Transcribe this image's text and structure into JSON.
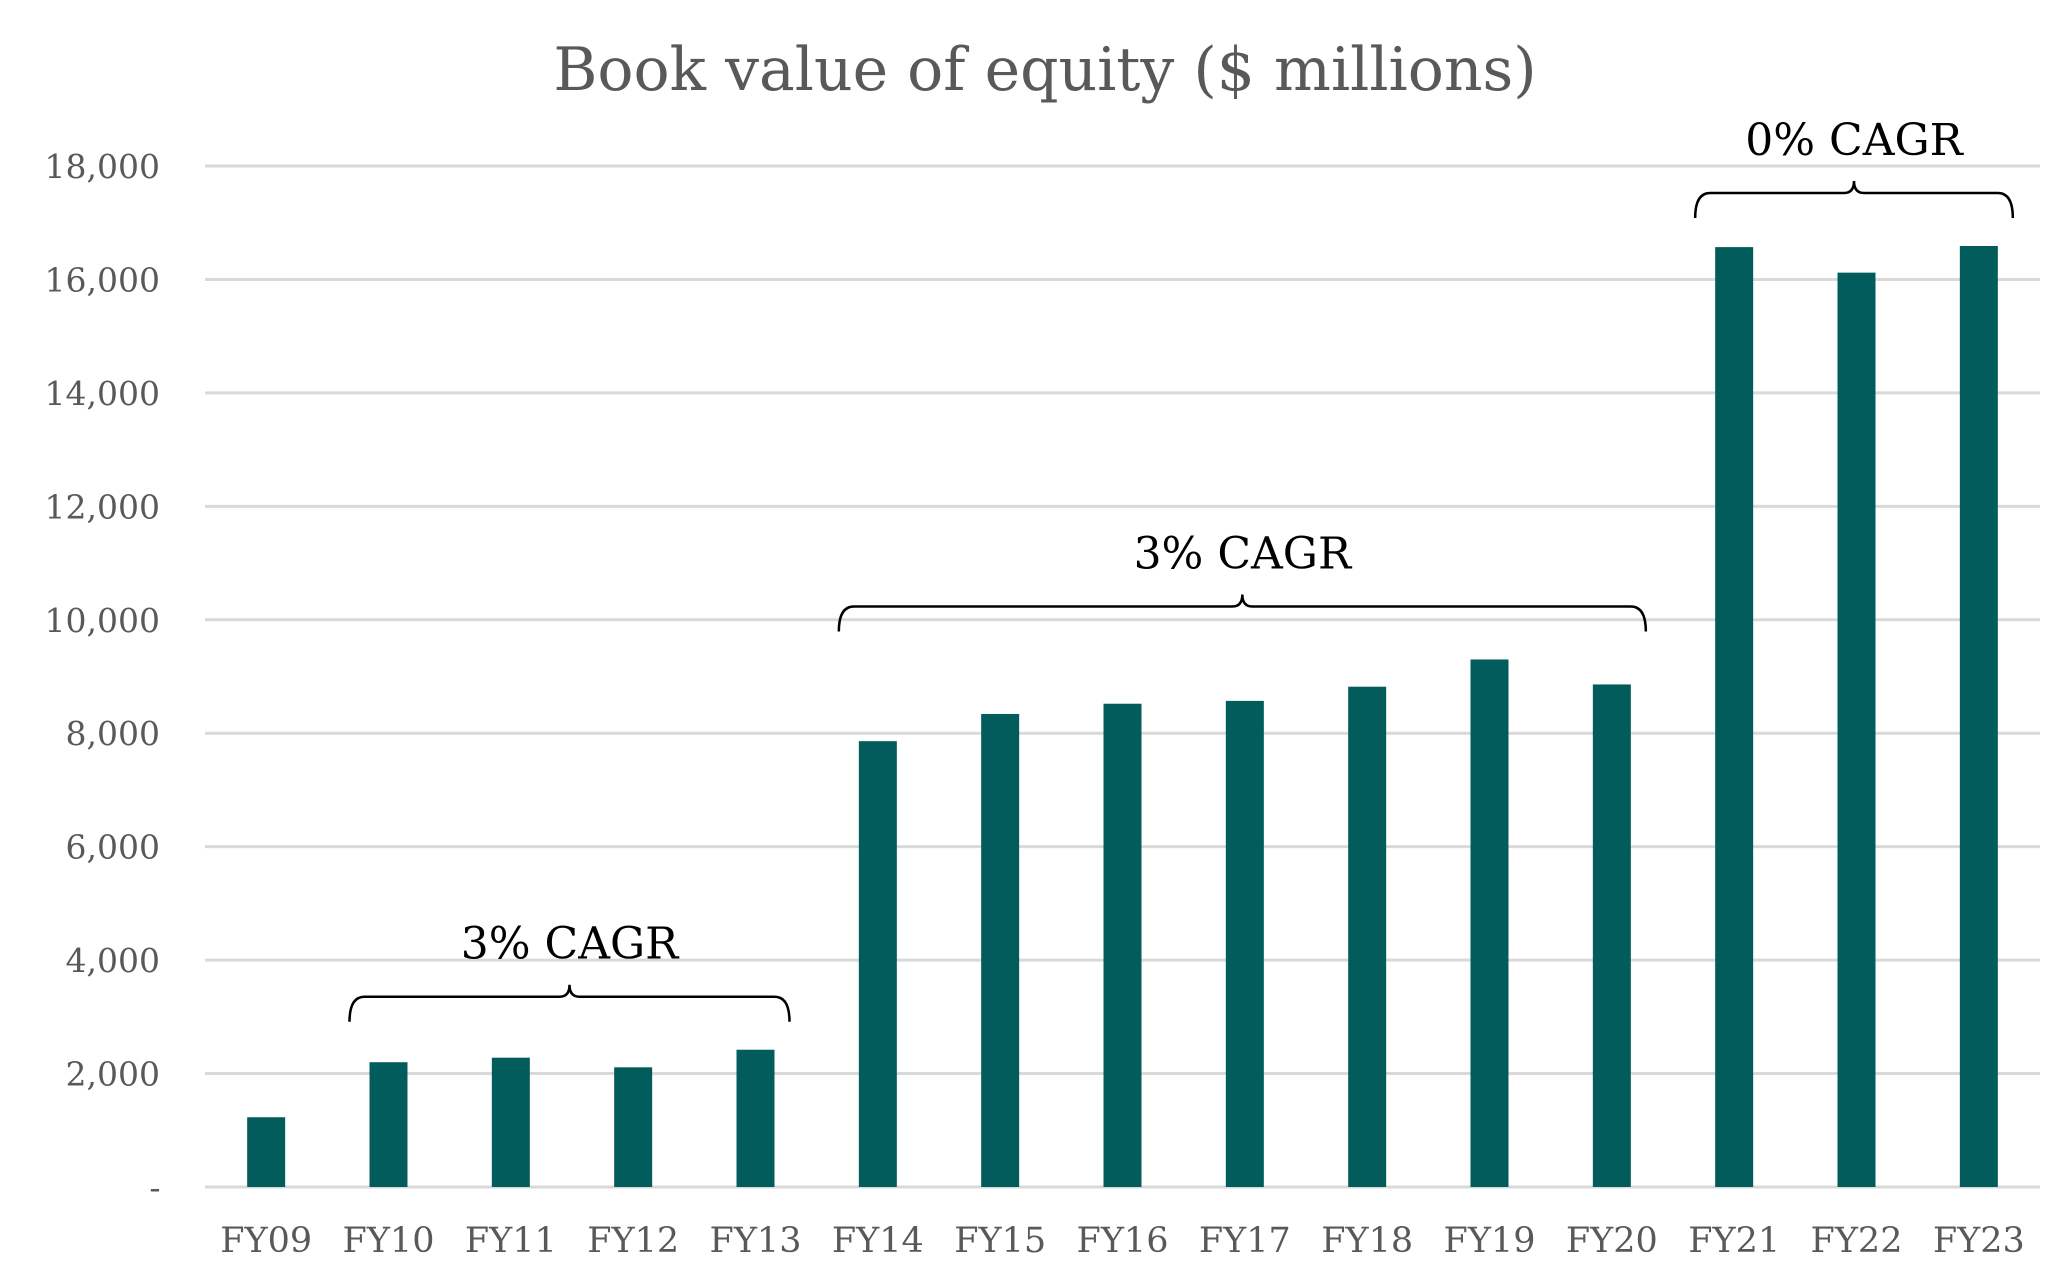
{
  "chart_data": {
    "type": "bar",
    "title": "Book value of equity ($ millions)",
    "xlabel": "",
    "ylabel": "",
    "ylim": [
      0,
      18000
    ],
    "yticks": [
      0,
      2000,
      4000,
      6000,
      8000,
      10000,
      12000,
      14000,
      16000,
      18000
    ],
    "ytick_labels": [
      "-",
      "2,000",
      "4,000",
      "6,000",
      "8,000",
      "10,000",
      "12,000",
      "14,000",
      "16,000",
      "18,000"
    ],
    "grid": true,
    "categories": [
      "FY09",
      "FY10",
      "FY11",
      "FY12",
      "FY13",
      "FY14",
      "FY15",
      "FY16",
      "FY17",
      "FY18",
      "FY19",
      "FY20",
      "FY21",
      "FY22",
      "FY23"
    ],
    "values": [
      1230,
      2200,
      2280,
      2110,
      2420,
      7860,
      8340,
      8520,
      8570,
      8820,
      9300,
      8860,
      16570,
      16120,
      16590
    ],
    "bar_color": "#035c5c",
    "annotations": [
      {
        "label": "3% CAGR",
        "from": "FY10",
        "to": "FY13"
      },
      {
        "label": "3% CAGR",
        "from": "FY14",
        "to": "FY20"
      },
      {
        "label": "0% CAGR",
        "from": "FY21",
        "to": "FY23"
      }
    ]
  }
}
